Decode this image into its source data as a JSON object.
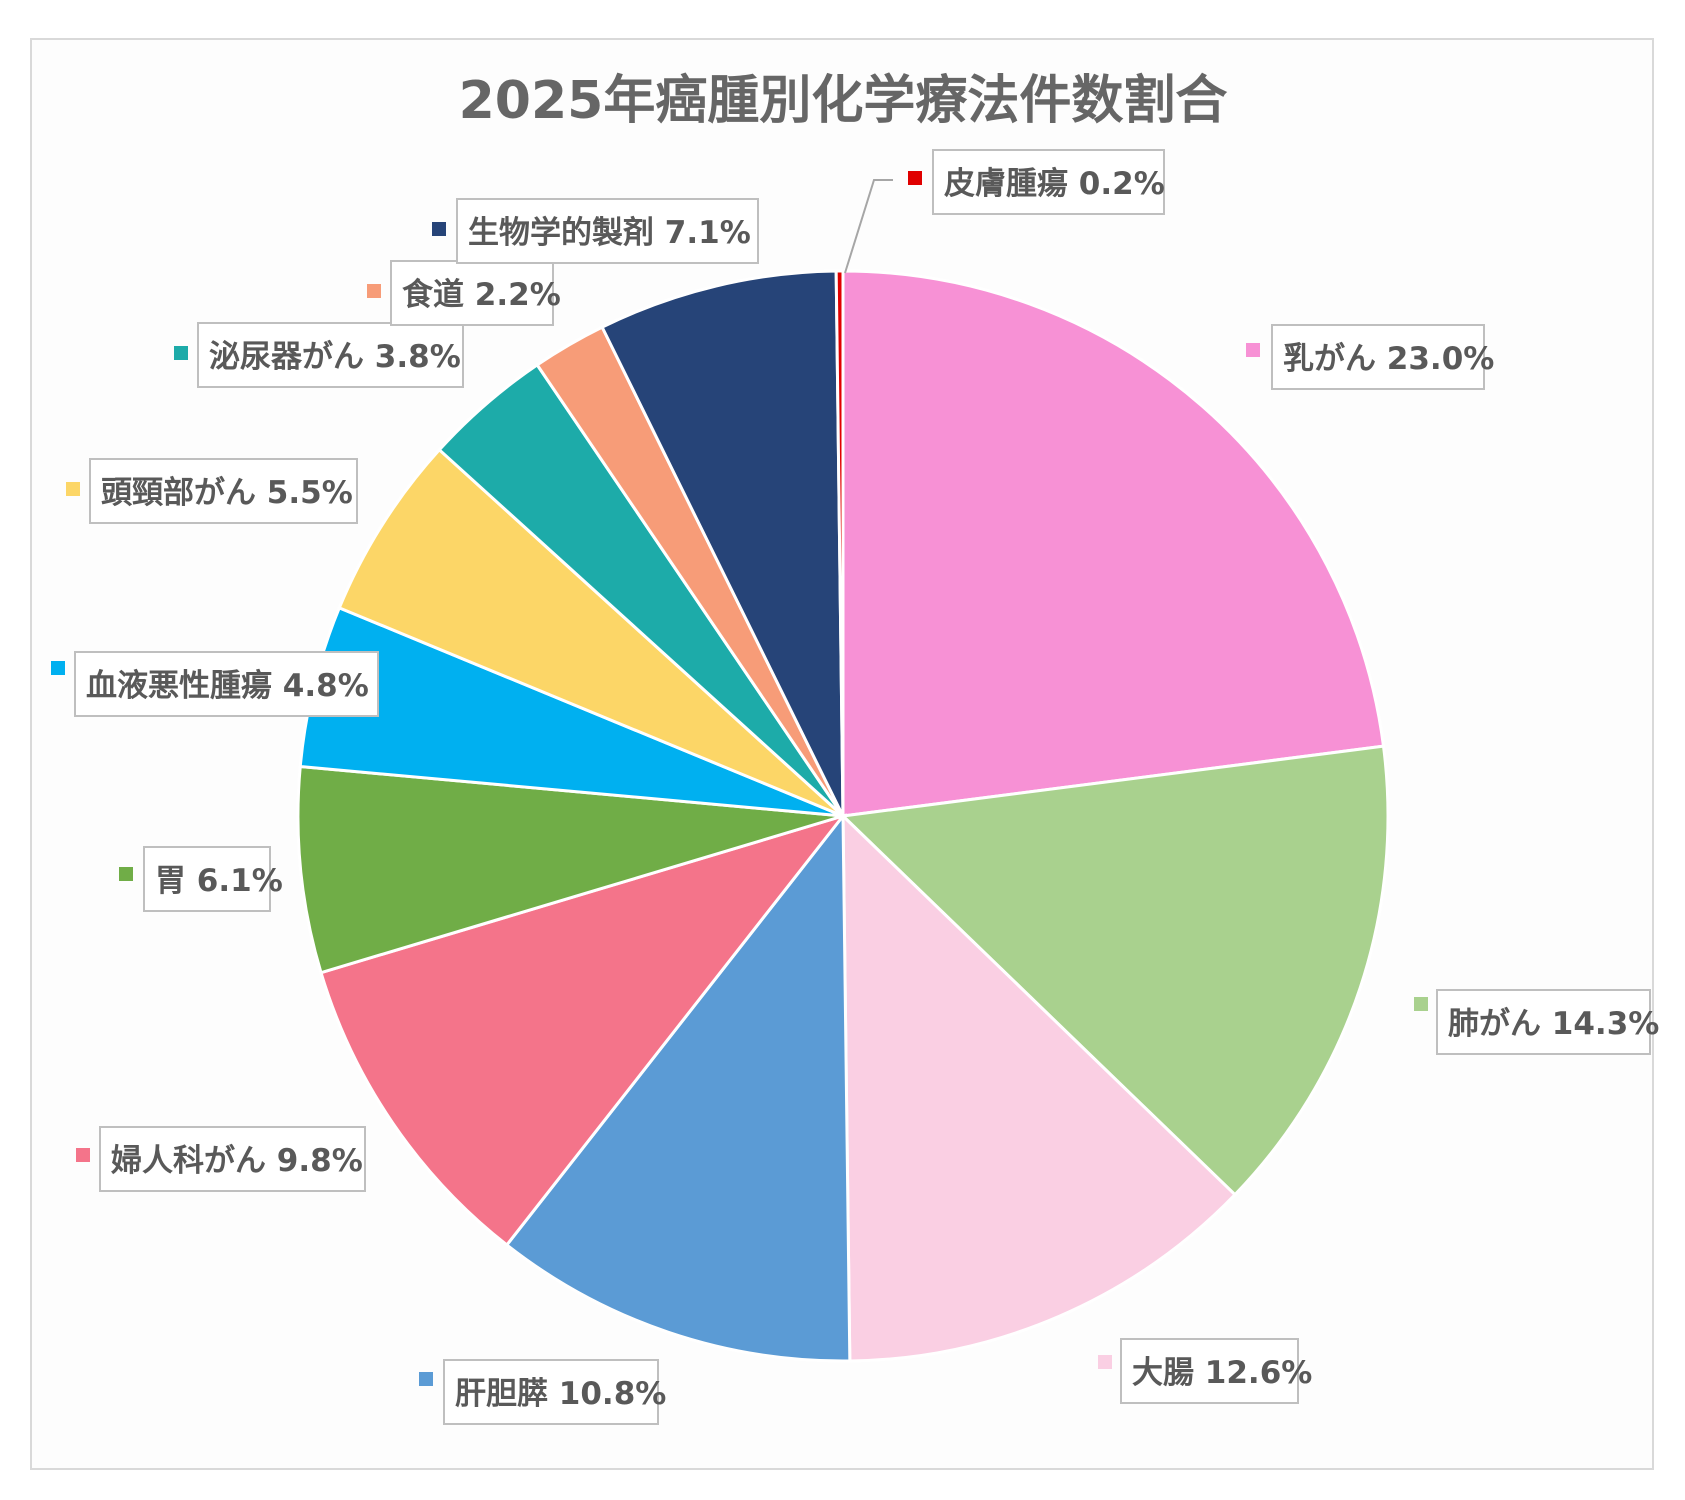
{
  "chart_data": {
    "type": "pie",
    "title": "2025年癌腫別化学療法件数割合",
    "slices": [
      {
        "label": "乳がん",
        "value": 23.0,
        "display": "23.0%",
        "color": "#F791D5"
      },
      {
        "label": "肺がん",
        "value": 14.3,
        "display": "14.3%",
        "color": "#A9D18E"
      },
      {
        "label": "大腸",
        "value": 12.6,
        "display": "12.6%",
        "color": "#FACFE3"
      },
      {
        "label": "肝胆膵",
        "value": 10.8,
        "display": "10.8%",
        "color": "#5B9BD5"
      },
      {
        "label": "婦人科がん",
        "value": 9.8,
        "display": "9.8%",
        "color": "#F4748A"
      },
      {
        "label": "胃",
        "value": 6.1,
        "display": "6.1%",
        "color": "#70AD47"
      },
      {
        "label": "血液悪性腫瘍",
        "value": 4.8,
        "display": "4.8%",
        "color": "#00B0F0"
      },
      {
        "label": "頭頸部がん",
        "value": 5.5,
        "display": "5.5%",
        "color": "#FCD667"
      },
      {
        "label": "泌尿器がん",
        "value": 3.8,
        "display": "3.8%",
        "color": "#1DABA9"
      },
      {
        "label": "食道",
        "value": 2.2,
        "display": "2.2%",
        "color": "#F79C78"
      },
      {
        "label": "生物学的製剤",
        "value": 7.1,
        "display": "7.1%",
        "color": "#264478"
      },
      {
        "label": "皮膚腫瘍",
        "value": 0.2,
        "display": "0.2%",
        "color": "#E00000"
      }
    ]
  }
}
